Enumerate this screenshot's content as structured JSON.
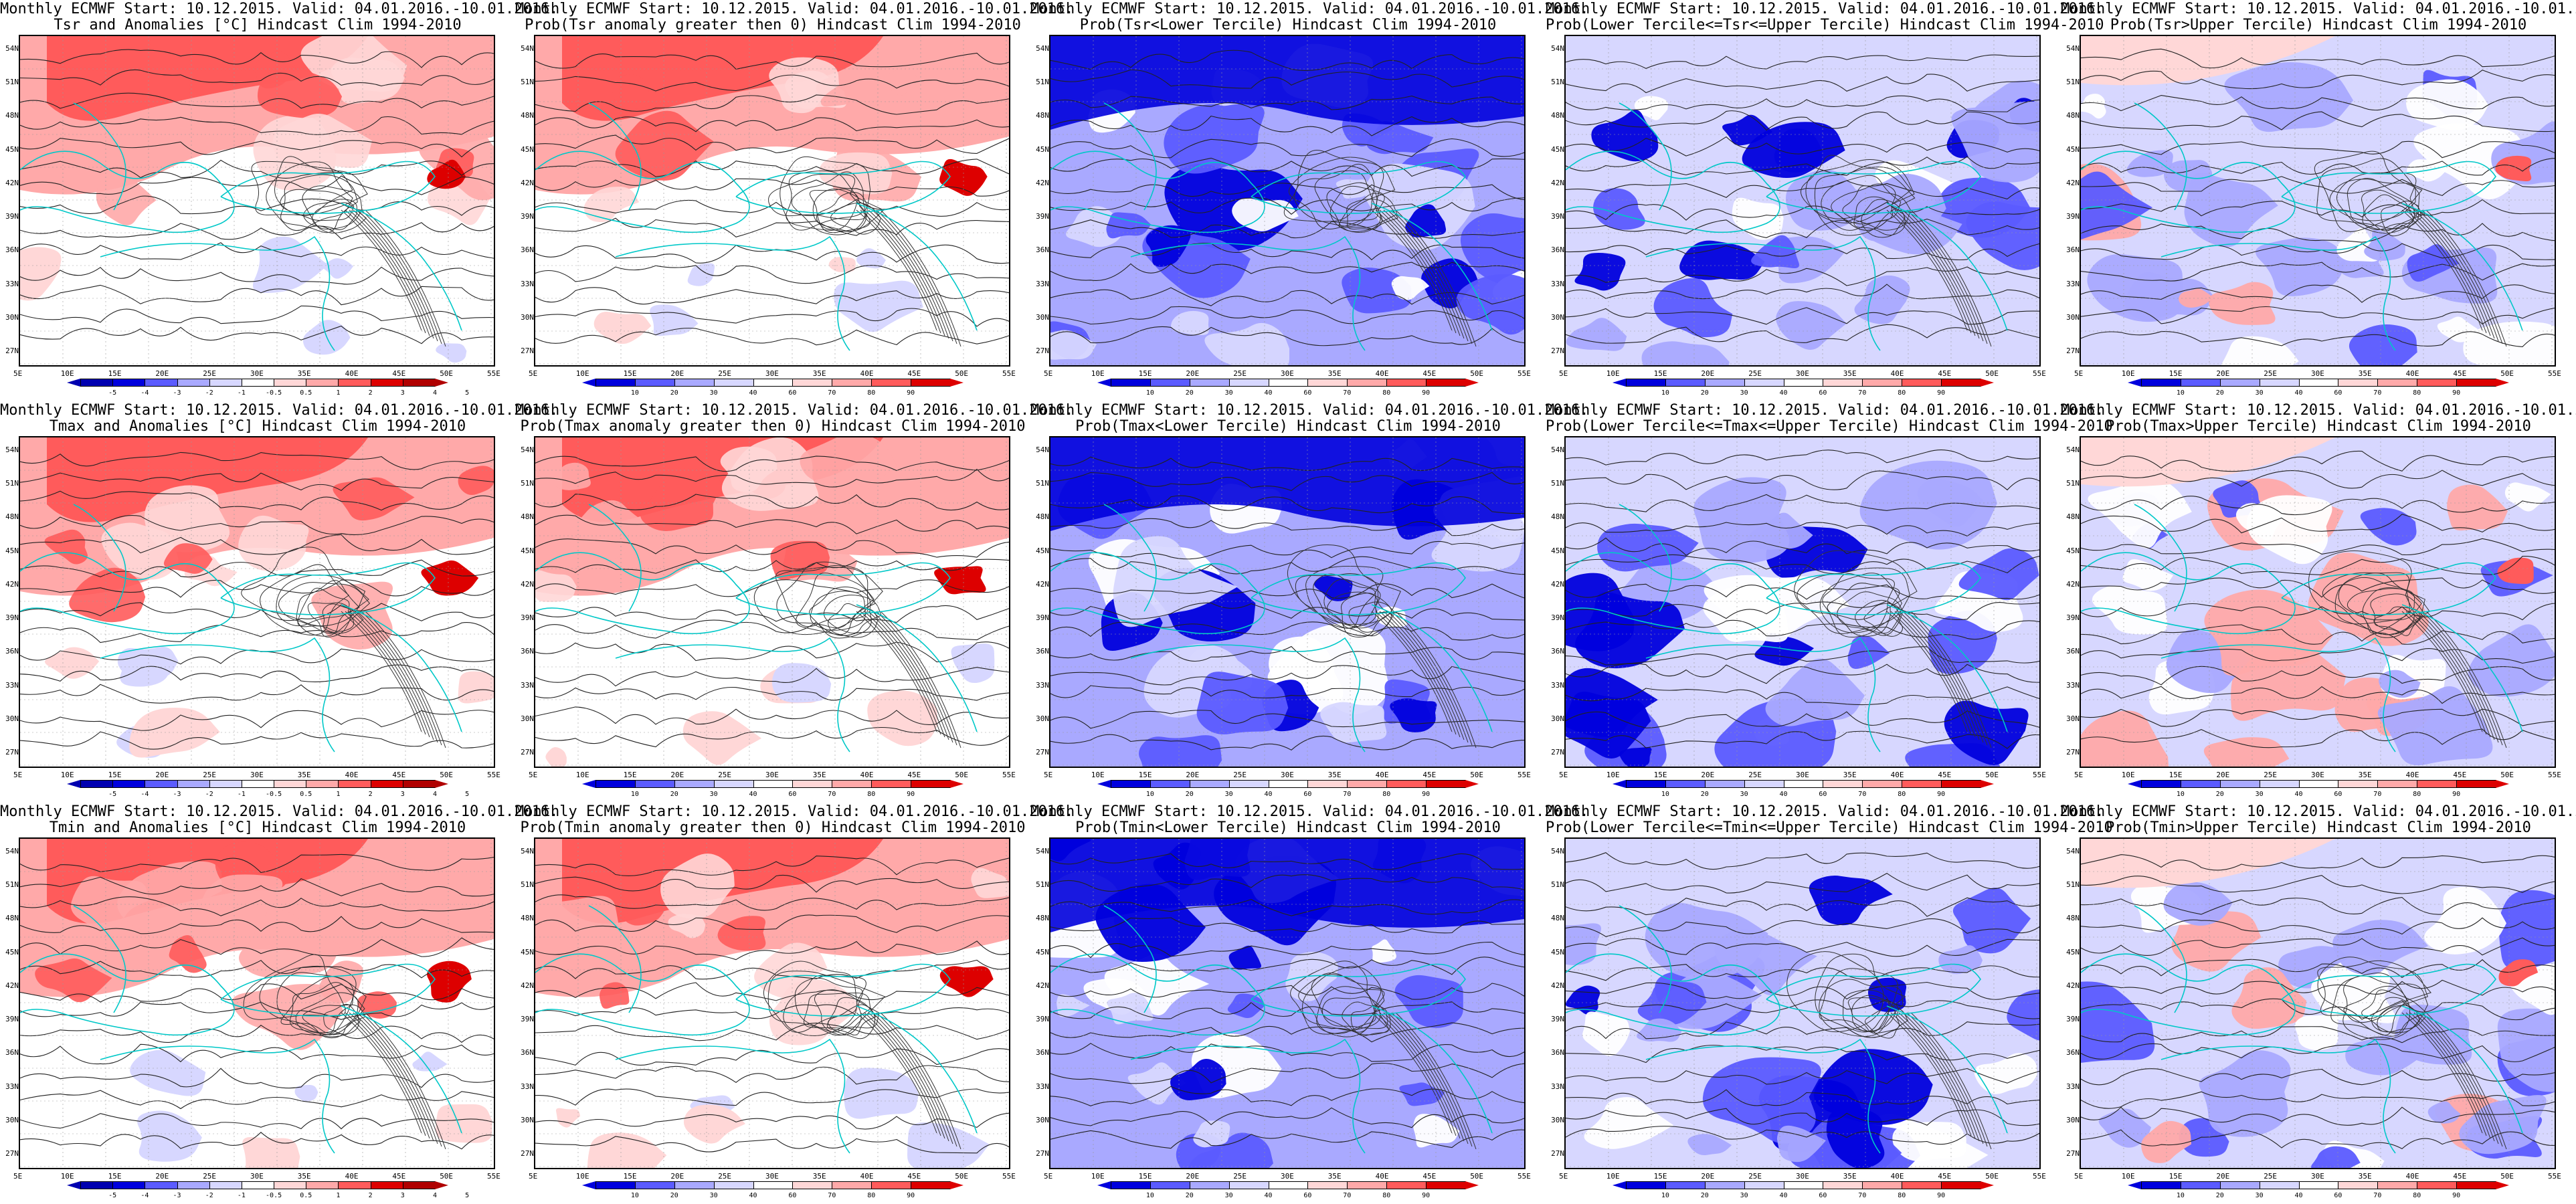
{
  "title_line1": "Monthly ECMWF Start: 10.12.2015. Valid: 04.01.2016.-10.01.2016.",
  "colors": {
    "blue_dark": "#0000dd",
    "blue_mid": "#5b5bff",
    "blue_light": "#a9a9ff",
    "blue_pale": "#d7d7ff",
    "red_pale": "#ffd7d7",
    "red_light": "#ffa9a9",
    "red_mid": "#ff5b5b",
    "red_dark": "#dd0000",
    "coast": "#00c8c8"
  },
  "lat_ticks": [
    "54N",
    "51N",
    "48N",
    "45N",
    "42N",
    "39N",
    "36N",
    "33N",
    "30N",
    "27N"
  ],
  "lon_ticks": [
    "5E",
    "10E",
    "15E",
    "20E",
    "25E",
    "30E",
    "35E",
    "40E",
    "45E",
    "50E",
    "55E"
  ],
  "anomaly_levels": [
    "-5",
    "-4",
    "-3",
    "-2",
    "-1",
    "-0.5",
    "0.5",
    "1",
    "2",
    "3",
    "4",
    "5"
  ],
  "prob_levels": [
    "10",
    "20",
    "30",
    "40",
    "60",
    "70",
    "80",
    "90"
  ],
  "chart_data": [
    {
      "type": "heatmap",
      "row": 0,
      "col": 0,
      "title": "Tsr and Anomalies [°C] Hindcast Clim 1994-2010",
      "scale": "anomaly",
      "dominant": "warm_north"
    },
    {
      "type": "heatmap",
      "row": 0,
      "col": 1,
      "title": "Prob(Tsr anomaly greater then 0) Hindcast Clim 1994-2010",
      "scale": "prob",
      "dominant": "warm_north"
    },
    {
      "type": "heatmap",
      "row": 0,
      "col": 2,
      "title": "Prob(Tsr<Lower Tercile) Hindcast Clim 1994-2010",
      "scale": "prob",
      "dominant": "blue_strong"
    },
    {
      "type": "heatmap",
      "row": 0,
      "col": 3,
      "title": "Prob(Lower Tercile<=Tsr<=Upper Tercile) Hindcast Clim 1994-2010",
      "scale": "prob",
      "dominant": "blue_mixed"
    },
    {
      "type": "heatmap",
      "row": 0,
      "col": 4,
      "title": "Prob(Tsr>Upper Tercile) Hindcast Clim 1994-2010",
      "scale": "prob",
      "dominant": "upper"
    },
    {
      "type": "heatmap",
      "row": 1,
      "col": 0,
      "title": "Tmax and Anomalies [°C] Hindcast Clim 1994-2010",
      "scale": "anomaly",
      "dominant": "warm_north"
    },
    {
      "type": "heatmap",
      "row": 1,
      "col": 1,
      "title": "Prob(Tmax anomaly greater then 0) Hindcast Clim 1994-2010",
      "scale": "prob",
      "dominant": "warm_north"
    },
    {
      "type": "heatmap",
      "row": 1,
      "col": 2,
      "title": "Prob(Tmax<Lower Tercile) Hindcast Clim 1994-2010",
      "scale": "prob",
      "dominant": "blue_strong"
    },
    {
      "type": "heatmap",
      "row": 1,
      "col": 3,
      "title": "Prob(Lower Tercile<=Tmax<=Upper Tercile) Hindcast Clim 1994-2010",
      "scale": "prob",
      "dominant": "blue_mixed"
    },
    {
      "type": "heatmap",
      "row": 1,
      "col": 4,
      "title": "Prob(Tmax>Upper Tercile) Hindcast Clim 1994-2010",
      "scale": "prob",
      "dominant": "upper"
    },
    {
      "type": "heatmap",
      "row": 2,
      "col": 0,
      "title": "Tmin and Anomalies [°C] Hindcast Clim 1994-2010",
      "scale": "anomaly",
      "dominant": "warm_north"
    },
    {
      "type": "heatmap",
      "row": 2,
      "col": 1,
      "title": "Prob(Tmin anomaly greater then 0) Hindcast Clim 1994-2010",
      "scale": "prob",
      "dominant": "warm_north"
    },
    {
      "type": "heatmap",
      "row": 2,
      "col": 2,
      "title": "Prob(Tmin<Lower Tercile) Hindcast Clim 1994-2010",
      "scale": "prob",
      "dominant": "blue_strong"
    },
    {
      "type": "heatmap",
      "row": 2,
      "col": 3,
      "title": "Prob(Lower Tercile<=Tmin<=Upper Tercile) Hindcast Clim 1994-2010",
      "scale": "prob",
      "dominant": "blue_mixed"
    },
    {
      "type": "heatmap",
      "row": 2,
      "col": 4,
      "title": "Prob(Tmin>Upper Tercile) Hindcast Clim 1994-2010",
      "scale": "prob",
      "dominant": "upper"
    }
  ]
}
